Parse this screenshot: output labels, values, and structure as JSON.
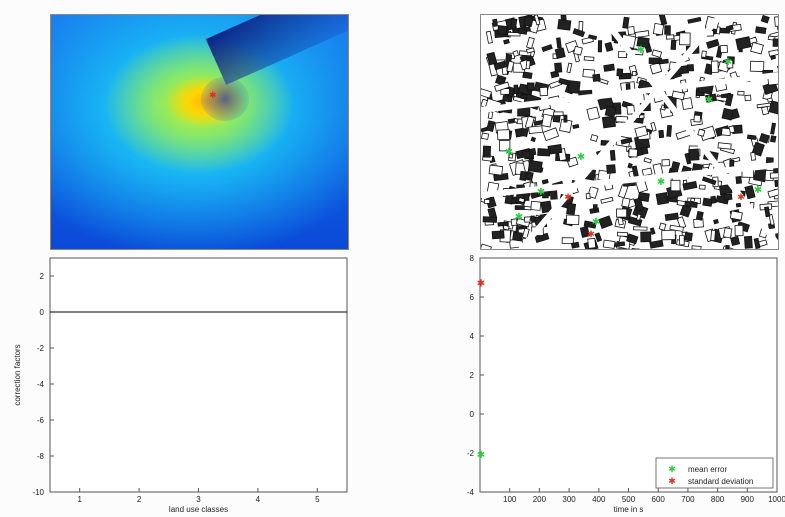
{
  "chart_data": [
    {
      "type": "heatmap",
      "colormap": [
        "#0a4ad8",
        "#18b4f4",
        "#34d8d8",
        "#88e868",
        "#d8f020",
        "#ffd400",
        "#ffb000"
      ]
    },
    {
      "type": "scatter",
      "markers": {
        "green_color": "#2ecc40",
        "red_color": "#e03020"
      }
    },
    {
      "type": "line",
      "xlabel": "land use classes",
      "ylabel": "correction factors",
      "xlim": [
        0.5,
        5.5
      ],
      "ylim": [
        -10,
        3
      ],
      "xticks": [
        1,
        2,
        3,
        4,
        5
      ],
      "yticks": [
        2,
        0,
        -2,
        -4,
        -6,
        -8,
        -10
      ],
      "series": [
        {
          "x": [
            0.5,
            5.5
          ],
          "values": [
            0,
            0
          ],
          "color": "#000000"
        }
      ]
    },
    {
      "type": "scatter",
      "xlabel": "time in s",
      "ylabel": "",
      "xlim": [
        0,
        1000
      ],
      "ylim": [
        -4,
        8
      ],
      "xticks": [
        100,
        200,
        300,
        400,
        500,
        600,
        700,
        800,
        900,
        1000
      ],
      "yticks": [
        8,
        6,
        4,
        2,
        0,
        -2,
        -4
      ],
      "legend_position": "bottom-right",
      "series": [
        {
          "name": "mean error",
          "color": "#2ecc40",
          "x": [
            0
          ],
          "values": [
            -2.1
          ]
        },
        {
          "name": "standard deviation",
          "color": "#e03020",
          "x": [
            0
          ],
          "values": [
            6.7
          ]
        }
      ]
    }
  ]
}
